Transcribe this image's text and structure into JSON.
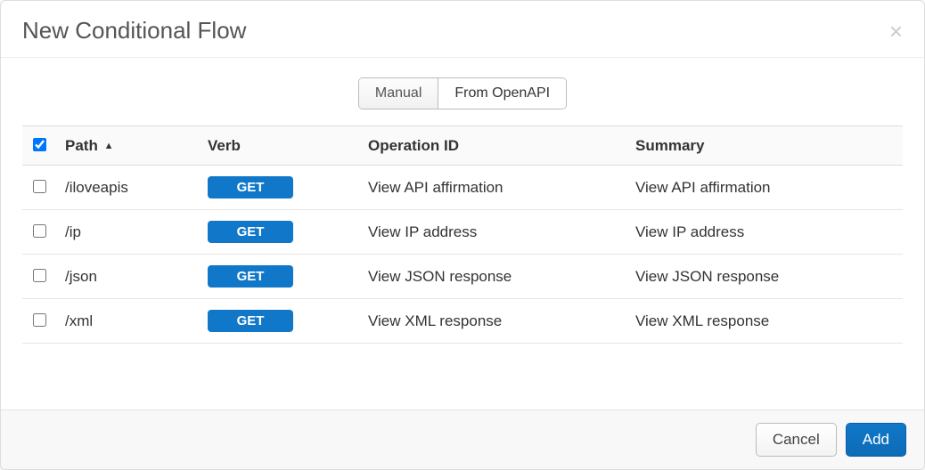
{
  "dialog": {
    "title": "New Conditional Flow",
    "close_glyph": "×"
  },
  "tabs": {
    "manual": "Manual",
    "openapi": "From OpenAPI",
    "active": "openapi"
  },
  "table": {
    "header_checked": true,
    "sort_indicator": "▲",
    "columns": {
      "path": "Path",
      "verb": "Verb",
      "operation_id": "Operation ID",
      "summary": "Summary"
    },
    "rows": [
      {
        "checked": false,
        "path": "/iloveapis",
        "verb": "GET",
        "operation_id": "View API affirmation",
        "summary": "View API affirmation"
      },
      {
        "checked": false,
        "path": "/ip",
        "verb": "GET",
        "operation_id": "View IP address",
        "summary": "View IP address"
      },
      {
        "checked": false,
        "path": "/json",
        "verb": "GET",
        "operation_id": "View JSON response",
        "summary": "View JSON response"
      },
      {
        "checked": false,
        "path": "/xml",
        "verb": "GET",
        "operation_id": "View XML response",
        "summary": "View XML response"
      }
    ]
  },
  "colors": {
    "verb_badge_bg": "#1178c9",
    "primary_btn_bg": "#1178c9",
    "primary_btn_bg2": "#0d6bb6"
  },
  "footer": {
    "cancel": "Cancel",
    "add": "Add"
  }
}
